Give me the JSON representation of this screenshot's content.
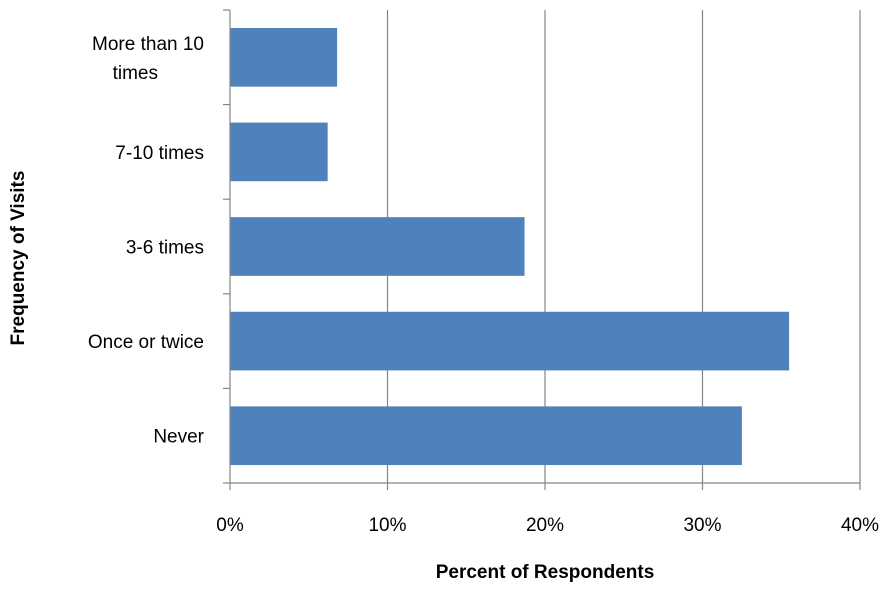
{
  "chart_data": {
    "type": "bar",
    "orientation": "horizontal",
    "categories": [
      "Never",
      "Once or twice",
      "3-6 times",
      "7-10 times",
      "More than 10 times"
    ],
    "category_lines": [
      [
        "Never"
      ],
      [
        "Once or twice"
      ],
      [
        "3-6 times"
      ],
      [
        "7-10 times"
      ],
      [
        "More than 10",
        "times"
      ]
    ],
    "values": [
      32.5,
      35.5,
      18.7,
      6.2,
      6.8
    ],
    "xlabel": "Percent of Respondents",
    "ylabel": "Frequency of Visits",
    "xlim": [
      0,
      40
    ],
    "x_ticks": [
      0,
      10,
      20,
      30,
      40
    ],
    "x_tick_labels": [
      "0%",
      "10%",
      "20%",
      "30%",
      "40%"
    ],
    "grid": "vertical",
    "legend": "none",
    "bar_color": "#4F81BD"
  }
}
